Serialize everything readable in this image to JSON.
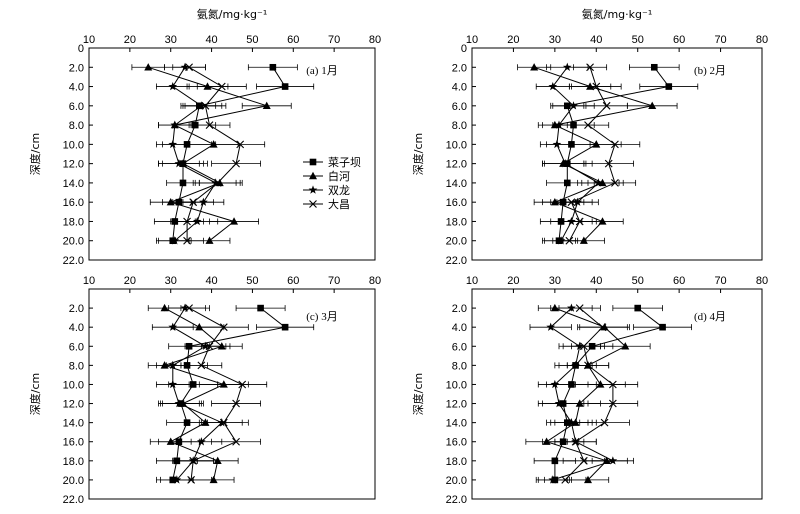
{
  "legend": [
    "菜子坝",
    "白河",
    "双龙",
    "大昌"
  ],
  "chart_data": [
    {
      "type": "line",
      "title": "(a) 1月",
      "xlabel": "氨氮/mg·kg⁻¹",
      "ylabel": "深度/cm",
      "xlim": [
        10,
        80
      ],
      "ylim": [
        0,
        22
      ],
      "x_ticks": [
        "10",
        "20",
        "30",
        "40",
        "50",
        "60",
        "70",
        "80"
      ],
      "y_ticks": [
        "0",
        "2.0",
        "4.0",
        "6.0",
        "8.0",
        "10.0",
        "12.0",
        "14.0",
        "16.0",
        "18.0",
        "20.0",
        "22.0"
      ],
      "depths": [
        2,
        4,
        6,
        8,
        10,
        12,
        14,
        16,
        18,
        20
      ],
      "series": [
        {
          "name": "菜子坝",
          "marker": "square",
          "values": [
            55,
            58,
            37,
            36,
            34,
            33,
            33,
            32,
            31,
            30.5
          ],
          "errors": [
            6,
            7,
            4,
            5,
            6,
            6,
            4,
            4,
            5,
            4
          ]
        },
        {
          "name": "白河",
          "marker": "triangle",
          "values": [
            24.5,
            39,
            53.5,
            31,
            40.5,
            33,
            42,
            30,
            45.5,
            39.5
          ],
          "errors": [
            4,
            5,
            6,
            4,
            6,
            5,
            5,
            5,
            6,
            5
          ]
        },
        {
          "name": "双龙",
          "marker": "star",
          "values": [
            33.5,
            30.5,
            37.5,
            31,
            30.5,
            32,
            41,
            38,
            36.5,
            31
          ],
          "errors": [
            5,
            4,
            5,
            4,
            4,
            5,
            5,
            5,
            5,
            4
          ]
        },
        {
          "name": "大昌",
          "marker": "x",
          "values": [
            34.5,
            42.5,
            38.5,
            39.5,
            47,
            46,
            41.5,
            35.5,
            34,
            34
          ],
          "errors": [
            4,
            6,
            5,
            5,
            6,
            6,
            6,
            5,
            4,
            4
          ]
        }
      ]
    },
    {
      "type": "line",
      "title": "(b) 2月",
      "xlabel": "氨氮/mg·kg⁻¹",
      "ylabel": "深度/cm",
      "xlim": [
        10,
        80
      ],
      "ylim": [
        0,
        22
      ],
      "x_ticks": [
        "10",
        "20",
        "30",
        "40",
        "50",
        "60",
        "70",
        "80"
      ],
      "y_ticks": [
        "0",
        "2.0",
        "4.0",
        "6.0",
        "8.0",
        "10.0",
        "12.0",
        "14.0",
        "16.0",
        "18.0",
        "20.0",
        "22.0"
      ],
      "depths": [
        2,
        4,
        6,
        8,
        10,
        12,
        14,
        16,
        18,
        20
      ],
      "series": [
        {
          "name": "菜子坝",
          "marker": "square",
          "values": [
            54,
            57.5,
            33,
            34.5,
            34,
            33,
            33,
            32,
            31.5,
            31
          ],
          "errors": [
            6,
            7,
            4,
            5,
            6,
            6,
            5,
            5,
            5,
            4
          ]
        },
        {
          "name": "白河",
          "marker": "triangle",
          "values": [
            25,
            38.5,
            53.5,
            30,
            40,
            32,
            41.5,
            30,
            41.5,
            37
          ],
          "errors": [
            4,
            5,
            6,
            4,
            6,
            5,
            5,
            5,
            5,
            5
          ]
        },
        {
          "name": "双龙",
          "marker": "star",
          "values": [
            33,
            29.5,
            34.5,
            31,
            30.5,
            32.5,
            40.5,
            35.5,
            34,
            31.5
          ],
          "errors": [
            5,
            4,
            5,
            4,
            4,
            5,
            5,
            5,
            5,
            4
          ]
        },
        {
          "name": "大昌",
          "marker": "x",
          "values": [
            38.5,
            40,
            42.5,
            38,
            44.5,
            43,
            44.5,
            34,
            36,
            33.5
          ],
          "errors": [
            4,
            6,
            5,
            5,
            6,
            6,
            5,
            5,
            4,
            4
          ]
        }
      ]
    },
    {
      "type": "line",
      "title": "(c) 3月",
      "xlabel": "",
      "ylabel": "深度/cm",
      "xlim": [
        10,
        80
      ],
      "ylim": [
        0,
        22
      ],
      "x_ticks": [
        "10",
        "20",
        "30",
        "40",
        "50",
        "60",
        "70",
        "80"
      ],
      "y_ticks": [
        "",
        "2.0",
        "4.0",
        "6.0",
        "8.0",
        "10.0",
        "12.0",
        "14.0",
        "16.0",
        "18.0",
        "20.0",
        "22.0"
      ],
      "depths": [
        2,
        4,
        6,
        8,
        10,
        12,
        14,
        16,
        18,
        20
      ],
      "series": [
        {
          "name": "菜子坝",
          "marker": "square",
          "values": [
            52,
            58,
            34.5,
            34,
            35.5,
            32.5,
            34,
            32,
            31.5,
            30.5
          ],
          "errors": [
            6,
            7,
            5,
            5,
            6,
            5,
            5,
            5,
            5,
            4
          ]
        },
        {
          "name": "白河",
          "marker": "triangle",
          "values": [
            28.5,
            37,
            42.5,
            28.5,
            43,
            33,
            38.5,
            30,
            41.5,
            40.5
          ],
          "errors": [
            4,
            6,
            5,
            4,
            6,
            5,
            5,
            5,
            5,
            5
          ]
        },
        {
          "name": "双龙",
          "marker": "star",
          "values": [
            33.5,
            30.5,
            38.5,
            30.5,
            30.5,
            32,
            42.5,
            37.5,
            35.5,
            31.5
          ],
          "errors": [
            5,
            5,
            5,
            4,
            4,
            5,
            5,
            5,
            5,
            4
          ]
        },
        {
          "name": "大昌",
          "marker": "x",
          "values": [
            34.5,
            43,
            39.5,
            37.5,
            47.5,
            46,
            43,
            46,
            35.5,
            35
          ],
          "errors": [
            5,
            6,
            5,
            5,
            6,
            6,
            6,
            6,
            5,
            5
          ]
        }
      ]
    },
    {
      "type": "line",
      "title": "(d) 4月",
      "xlabel": "",
      "ylabel": "深度/cm",
      "xlim": [
        10,
        80
      ],
      "ylim": [
        0,
        22
      ],
      "x_ticks": [
        "10",
        "20",
        "30",
        "40",
        "50",
        "60",
        "70",
        "80"
      ],
      "y_ticks": [
        "",
        "2.0",
        "4.0",
        "6.0",
        "8.0",
        "10.0",
        "12.0",
        "14.0",
        "16.0",
        "18.0",
        "20.0",
        "22.0"
      ],
      "depths": [
        2,
        4,
        6,
        8,
        10,
        12,
        14,
        16,
        18,
        20
      ],
      "series": [
        {
          "name": "菜子坝",
          "marker": "square",
          "values": [
            50,
            56,
            39,
            35,
            34,
            32,
            33,
            32,
            30,
            30
          ],
          "errors": [
            6,
            7,
            5,
            5,
            6,
            5,
            5,
            5,
            5,
            4
          ]
        },
        {
          "name": "白河",
          "marker": "triangle",
          "values": [
            30,
            42,
            47,
            38,
            41,
            36,
            35,
            28,
            42.5,
            38
          ],
          "errors": [
            4,
            6,
            6,
            5,
            6,
            5,
            5,
            5,
            5,
            5
          ]
        },
        {
          "name": "双龙",
          "marker": "star",
          "values": [
            34,
            29,
            36,
            35,
            30,
            31,
            34,
            35,
            44,
            29.5
          ],
          "errors": [
            5,
            5,
            5,
            4,
            4,
            5,
            5,
            5,
            5,
            4
          ]
        },
        {
          "name": "大昌",
          "marker": "x",
          "values": [
            36,
            41.5,
            37,
            38,
            44,
            44,
            42,
            35,
            37,
            32.5
          ],
          "errors": [
            5,
            6,
            5,
            5,
            6,
            6,
            6,
            5,
            5,
            5
          ]
        }
      ]
    }
  ]
}
